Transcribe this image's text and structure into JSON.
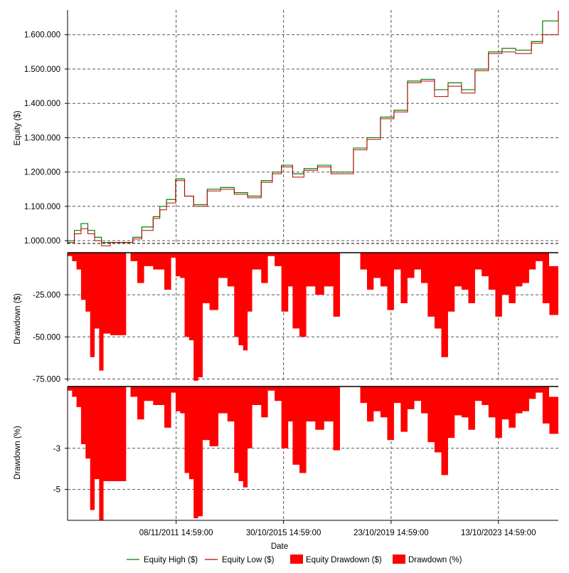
{
  "chart_data": {
    "type": "line",
    "xlabel": "Date",
    "x_ticks": [
      "08/11/2011 14:59:00",
      "30/10/2015 14:59:00",
      "23/10/2019 14:59:00",
      "13/10/2023 14:59:00"
    ],
    "x_range": [
      "2007-11-01",
      "2025-12-31"
    ],
    "panels": [
      {
        "name": "equity",
        "ylabel": "Equity ($)",
        "y_ticks": [
          "1.000.000",
          "1.100.000",
          "1.200.000",
          "1.300.000",
          "1.400.000",
          "1.500.000",
          "1.600.000"
        ],
        "y_tick_values": [
          1000000,
          1100000,
          1200000,
          1300000,
          1400000,
          1500000,
          1600000
        ],
        "ylim": [
          990000,
          1672000
        ],
        "grid": true
      },
      {
        "name": "drawdown_usd",
        "ylabel": "Drawdown ($)",
        "y_ticks": [
          "-25.000",
          "-50.000",
          "-75.000"
        ],
        "y_tick_values": [
          -25000,
          -50000,
          -75000
        ],
        "ylim": [
          -76500,
          0
        ],
        "grid": true
      },
      {
        "name": "drawdown_pct",
        "ylabel": "Drawdown (%)",
        "y_ticks": [
          "-3",
          "-5"
        ],
        "y_tick_values": [
          -3,
          -5
        ],
        "ylim": [
          -6.5,
          0
        ],
        "grid": true
      }
    ],
    "series": [
      {
        "name": "Equity High ($)",
        "color": "#008000",
        "panel": "equity",
        "x": [
          "2007-11-01",
          "2008-02-01",
          "2008-05-01",
          "2008-08-01",
          "2008-11-01",
          "2009-02-01",
          "2009-06-01",
          "2010-01-01",
          "2010-04-01",
          "2010-08-01",
          "2011-01-01",
          "2011-04-01",
          "2011-07-01",
          "2011-11-01",
          "2012-03-01",
          "2012-07-01",
          "2013-01-01",
          "2013-07-01",
          "2014-01-01",
          "2014-07-01",
          "2015-01-01",
          "2015-06-01",
          "2015-10-01",
          "2016-03-01",
          "2016-08-01",
          "2017-02-01",
          "2017-08-01",
          "2017-12-01",
          "2018-06-01",
          "2018-12-01",
          "2019-06-01",
          "2019-12-01",
          "2020-06-01",
          "2020-12-01",
          "2021-06-01",
          "2021-12-01",
          "2022-06-01",
          "2022-12-01",
          "2023-06-01",
          "2023-12-01",
          "2024-06-01",
          "2025-01-01",
          "2025-06-01",
          "2025-12-31"
        ],
        "y": [
          1000000,
          1030000,
          1050000,
          1030000,
          1010000,
          995000,
          995000,
          995000,
          1010000,
          1040000,
          1070000,
          1100000,
          1120000,
          1180000,
          1130000,
          1105000,
          1150000,
          1155000,
          1140000,
          1130000,
          1175000,
          1200000,
          1220000,
          1195000,
          1210000,
          1220000,
          1200000,
          1200000,
          1270000,
          1300000,
          1360000,
          1380000,
          1465000,
          1470000,
          1440000,
          1460000,
          1440000,
          1500000,
          1550000,
          1560000,
          1555000,
          1580000,
          1640000,
          1670000
        ]
      },
      {
        "name": "Equity Low ($)",
        "color": "#c00000",
        "panel": "equity",
        "x": [
          "2007-11-01",
          "2008-02-01",
          "2008-05-01",
          "2008-08-01",
          "2008-11-01",
          "2009-02-01",
          "2009-06-01",
          "2010-01-01",
          "2010-04-01",
          "2010-08-01",
          "2011-01-01",
          "2011-04-01",
          "2011-07-01",
          "2011-11-01",
          "2012-03-01",
          "2012-07-01",
          "2013-01-01",
          "2013-07-01",
          "2014-01-01",
          "2014-07-01",
          "2015-01-01",
          "2015-06-01",
          "2015-10-01",
          "2016-03-01",
          "2016-08-01",
          "2017-02-01",
          "2017-08-01",
          "2017-12-01",
          "2018-06-01",
          "2018-12-01",
          "2019-06-01",
          "2019-12-01",
          "2020-06-01",
          "2020-12-01",
          "2021-06-01",
          "2021-12-01",
          "2022-06-01",
          "2022-12-01",
          "2023-06-01",
          "2023-12-01",
          "2024-06-01",
          "2025-01-01",
          "2025-06-01",
          "2025-12-31"
        ],
        "y": [
          995000,
          1020000,
          1035000,
          1020000,
          1000000,
          985000,
          995000,
          995000,
          1005000,
          1030000,
          1065000,
          1090000,
          1110000,
          1175000,
          1130000,
          1100000,
          1145000,
          1150000,
          1135000,
          1125000,
          1170000,
          1195000,
          1215000,
          1185000,
          1205000,
          1215000,
          1195000,
          1195000,
          1265000,
          1295000,
          1355000,
          1375000,
          1460000,
          1465000,
          1420000,
          1450000,
          1430000,
          1495000,
          1545000,
          1550000,
          1545000,
          1575000,
          1600000,
          1670000
        ]
      },
      {
        "name": "Equity Drawdown ($)",
        "color": "#ff0000",
        "panel": "drawdown_usd",
        "x": [
          "2007-11-01",
          "2008-01-01",
          "2008-03-01",
          "2008-05-01",
          "2008-07-01",
          "2008-09-01",
          "2008-11-01",
          "2009-01-01",
          "2009-03-01",
          "2009-06-01",
          "2009-10-01",
          "2010-01-01",
          "2010-03-01",
          "2010-06-01",
          "2010-09-01",
          "2011-01-01",
          "2011-06-01",
          "2011-09-01",
          "2011-11-01",
          "2012-01-01",
          "2012-03-01",
          "2012-05-01",
          "2012-07-01",
          "2012-09-01",
          "2012-11-01",
          "2013-02-01",
          "2013-06-01",
          "2013-10-01",
          "2014-01-01",
          "2014-03-01",
          "2014-05-01",
          "2014-07-01",
          "2014-09-01",
          "2015-01-01",
          "2015-04-01",
          "2015-07-01",
          "2015-10-01",
          "2016-01-01",
          "2016-03-01",
          "2016-06-01",
          "2016-09-01",
          "2017-01-01",
          "2017-05-01",
          "2017-09-01",
          "2017-12-01",
          "2018-03-01",
          "2018-06-01",
          "2018-09-01",
          "2018-12-01",
          "2019-03-01",
          "2019-06-01",
          "2019-09-01",
          "2019-12-01",
          "2020-03-01",
          "2020-06-01",
          "2020-09-01",
          "2020-12-01",
          "2021-03-01",
          "2021-06-01",
          "2021-09-01",
          "2021-12-01",
          "2022-03-01",
          "2022-06-01",
          "2022-09-01",
          "2022-12-01",
          "2023-03-01",
          "2023-06-01",
          "2023-09-01",
          "2023-12-01",
          "2024-03-01",
          "2024-06-01",
          "2024-09-01",
          "2024-12-01",
          "2025-03-01",
          "2025-06-01",
          "2025-09-01",
          "2025-12-31"
        ],
        "y": [
          -2000,
          -5000,
          -10000,
          -28000,
          -35000,
          -62000,
          -45000,
          -70000,
          -48000,
          -49000,
          -49000,
          0,
          -5000,
          -18000,
          -8000,
          -10000,
          -22000,
          -3000,
          -14000,
          -15000,
          -50000,
          -52000,
          -76000,
          -74000,
          -30000,
          -34000,
          -15000,
          -20000,
          -50000,
          -55000,
          -58000,
          -35000,
          -10000,
          -18000,
          -2000,
          -8000,
          -35000,
          -20000,
          -45000,
          -50000,
          -20000,
          -25000,
          -20000,
          -38000,
          0,
          0,
          0,
          -10000,
          -22000,
          -15000,
          -20000,
          -34000,
          -10000,
          -30000,
          -15000,
          -10000,
          -18000,
          -38000,
          -45000,
          -62000,
          -35000,
          -20000,
          -22000,
          -30000,
          -10000,
          -14000,
          -22000,
          -38000,
          -25000,
          -30000,
          -20000,
          -18000,
          -10000,
          -5000,
          -30000,
          -37000,
          -8000
        ]
      },
      {
        "name": "Drawdown (%)",
        "color": "#ff0000",
        "panel": "drawdown_pct",
        "x": [
          "2007-11-01",
          "2008-01-01",
          "2008-03-01",
          "2008-05-01",
          "2008-07-01",
          "2008-09-01",
          "2008-11-01",
          "2009-01-01",
          "2009-03-01",
          "2009-06-01",
          "2009-10-01",
          "2010-01-01",
          "2010-03-01",
          "2010-06-01",
          "2010-09-01",
          "2011-01-01",
          "2011-06-01",
          "2011-09-01",
          "2011-11-01",
          "2012-01-01",
          "2012-03-01",
          "2012-05-01",
          "2012-07-01",
          "2012-09-01",
          "2012-11-01",
          "2013-02-01",
          "2013-06-01",
          "2013-10-01",
          "2014-01-01",
          "2014-03-01",
          "2014-05-01",
          "2014-07-01",
          "2014-09-01",
          "2015-01-01",
          "2015-04-01",
          "2015-07-01",
          "2015-10-01",
          "2016-01-01",
          "2016-03-01",
          "2016-06-01",
          "2016-09-01",
          "2017-01-01",
          "2017-05-01",
          "2017-09-01",
          "2017-12-01",
          "2018-03-01",
          "2018-06-01",
          "2018-09-01",
          "2018-12-01",
          "2019-03-01",
          "2019-06-01",
          "2019-09-01",
          "2019-12-01",
          "2020-03-01",
          "2020-06-01",
          "2020-09-01",
          "2020-12-01",
          "2021-03-01",
          "2021-06-01",
          "2021-09-01",
          "2021-12-01",
          "2022-03-01",
          "2022-06-01",
          "2022-09-01",
          "2022-12-01",
          "2023-03-01",
          "2023-06-01",
          "2023-09-01",
          "2023-12-01",
          "2024-03-01",
          "2024-06-01",
          "2024-09-01",
          "2024-12-01",
          "2025-03-01",
          "2025-06-01",
          "2025-09-01",
          "2025-12-31"
        ],
        "y": [
          -0.2,
          -0.5,
          -1.0,
          -2.8,
          -3.5,
          -6.0,
          -4.5,
          -6.5,
          -4.6,
          -4.6,
          -4.6,
          0,
          -0.5,
          -1.6,
          -0.7,
          -0.9,
          -2.0,
          -0.3,
          -1.2,
          -1.3,
          -4.2,
          -4.5,
          -6.4,
          -6.3,
          -2.6,
          -2.9,
          -1.3,
          -1.7,
          -4.2,
          -4.6,
          -4.9,
          -3.0,
          -0.9,
          -1.5,
          -0.2,
          -0.7,
          -3.0,
          -1.7,
          -3.8,
          -4.2,
          -1.7,
          -2.1,
          -1.7,
          -3.1,
          0,
          0,
          0,
          -0.8,
          -1.7,
          -1.2,
          -1.5,
          -2.6,
          -0.8,
          -2.2,
          -1.1,
          -0.7,
          -1.3,
          -2.7,
          -3.2,
          -4.3,
          -2.5,
          -1.4,
          -1.5,
          -2.1,
          -0.7,
          -0.9,
          -1.5,
          -2.5,
          -1.6,
          -2.0,
          -1.3,
          -1.2,
          -0.6,
          -0.3,
          -1.8,
          -2.3,
          -0.5
        ]
      }
    ],
    "legend": {
      "position": "bottom",
      "items": [
        {
          "label": "Equity High ($)",
          "color": "#008000",
          "kind": "line"
        },
        {
          "label": "Equity Low ($)",
          "color": "#c00000",
          "kind": "line"
        },
        {
          "label": "Equity Drawdown ($)",
          "color": "#ff0000",
          "kind": "box"
        },
        {
          "label": "Drawdown (%)",
          "color": "#ff0000",
          "kind": "box"
        }
      ]
    }
  }
}
